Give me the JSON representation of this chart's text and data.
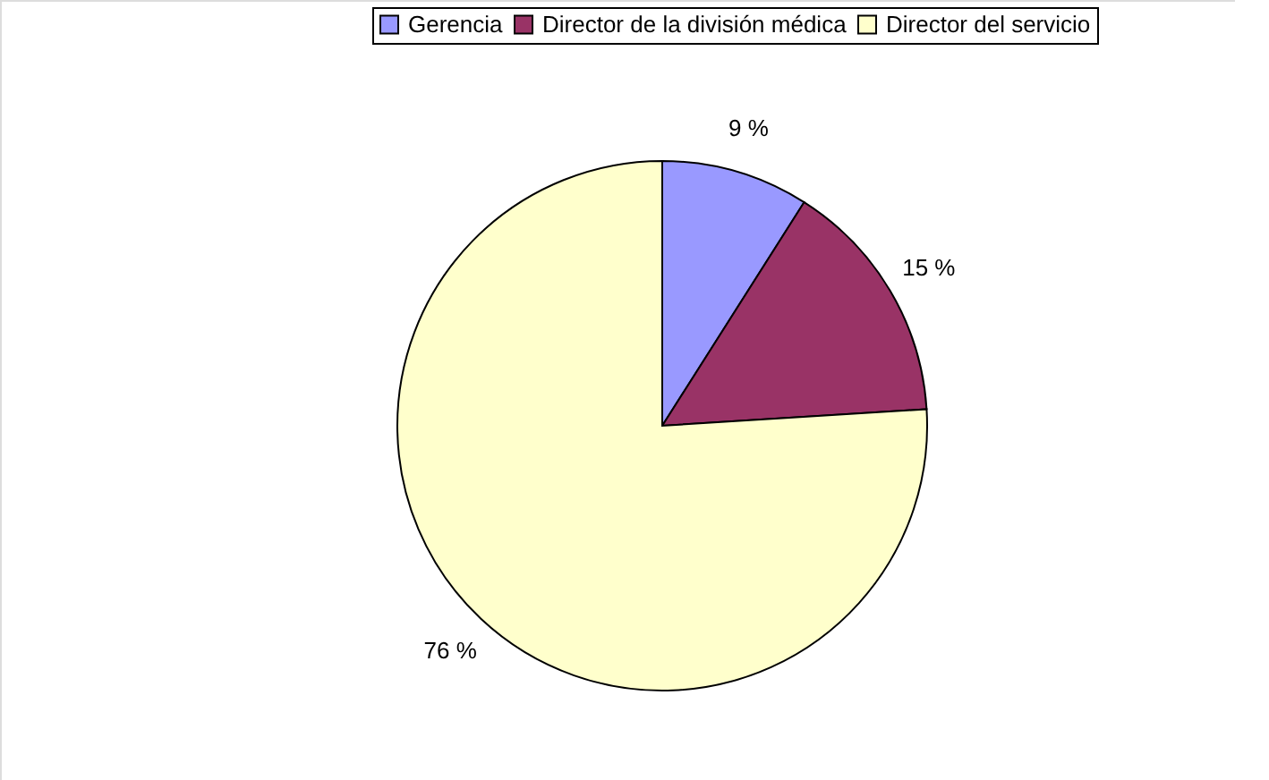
{
  "chart_data": {
    "type": "pie",
    "categories": [
      "Gerencia",
      "Director de la división médica",
      "Director del servicio"
    ],
    "values": [
      9,
      15,
      76
    ],
    "colors": [
      "#9999ff",
      "#993366",
      "#ffffcc"
    ],
    "value_labels": [
      "9 %",
      "15 %",
      "76 %"
    ],
    "legend": "top"
  }
}
